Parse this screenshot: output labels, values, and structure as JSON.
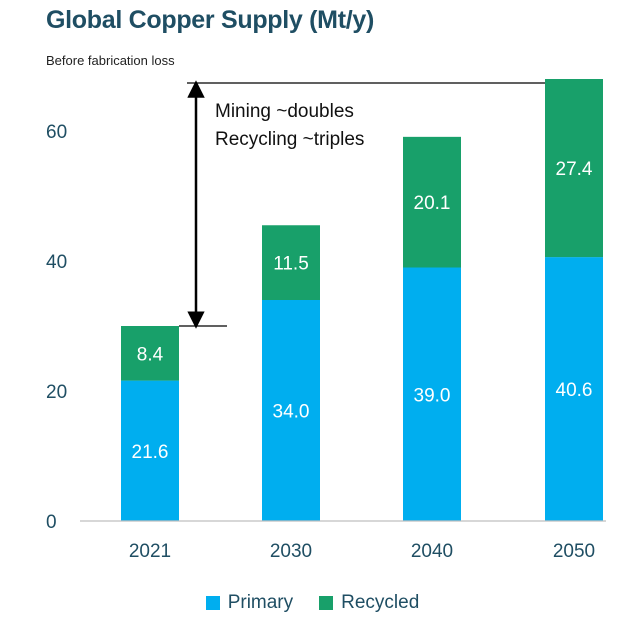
{
  "header": {
    "title": "Global Copper Supply (Mt/y)",
    "subtitle": "Before fabrication loss"
  },
  "annotation": {
    "line1": "Mining ~doubles",
    "line2": "Recycling ~triples"
  },
  "colors": {
    "primary": "#00aeef",
    "recycled": "#18a06a",
    "axis_text": "#1f4e63"
  },
  "chart_data": {
    "type": "bar",
    "stacked": true,
    "categories": [
      "2021",
      "2030",
      "2040",
      "2050"
    ],
    "series": [
      {
        "name": "Primary",
        "values": [
          21.6,
          34.0,
          39.0,
          40.6
        ]
      },
      {
        "name": "Recycled",
        "values": [
          8.4,
          11.5,
          20.1,
          27.4
        ]
      }
    ],
    "data_labels": [
      [
        "21.6",
        "34.0",
        "39.0",
        "40.6"
      ],
      [
        "8.4",
        "11.5",
        "20.1",
        "27.4"
      ]
    ],
    "title": "Global Copper Supply (Mt/y)",
    "subtitle": "Before fabrication loss",
    "ylim": [
      0,
      72
    ],
    "yticks": [
      0,
      20,
      40,
      60
    ],
    "ytick_labels": [
      "0",
      "20",
      "40",
      "60"
    ],
    "grid": false,
    "legend": "bottom-center"
  }
}
